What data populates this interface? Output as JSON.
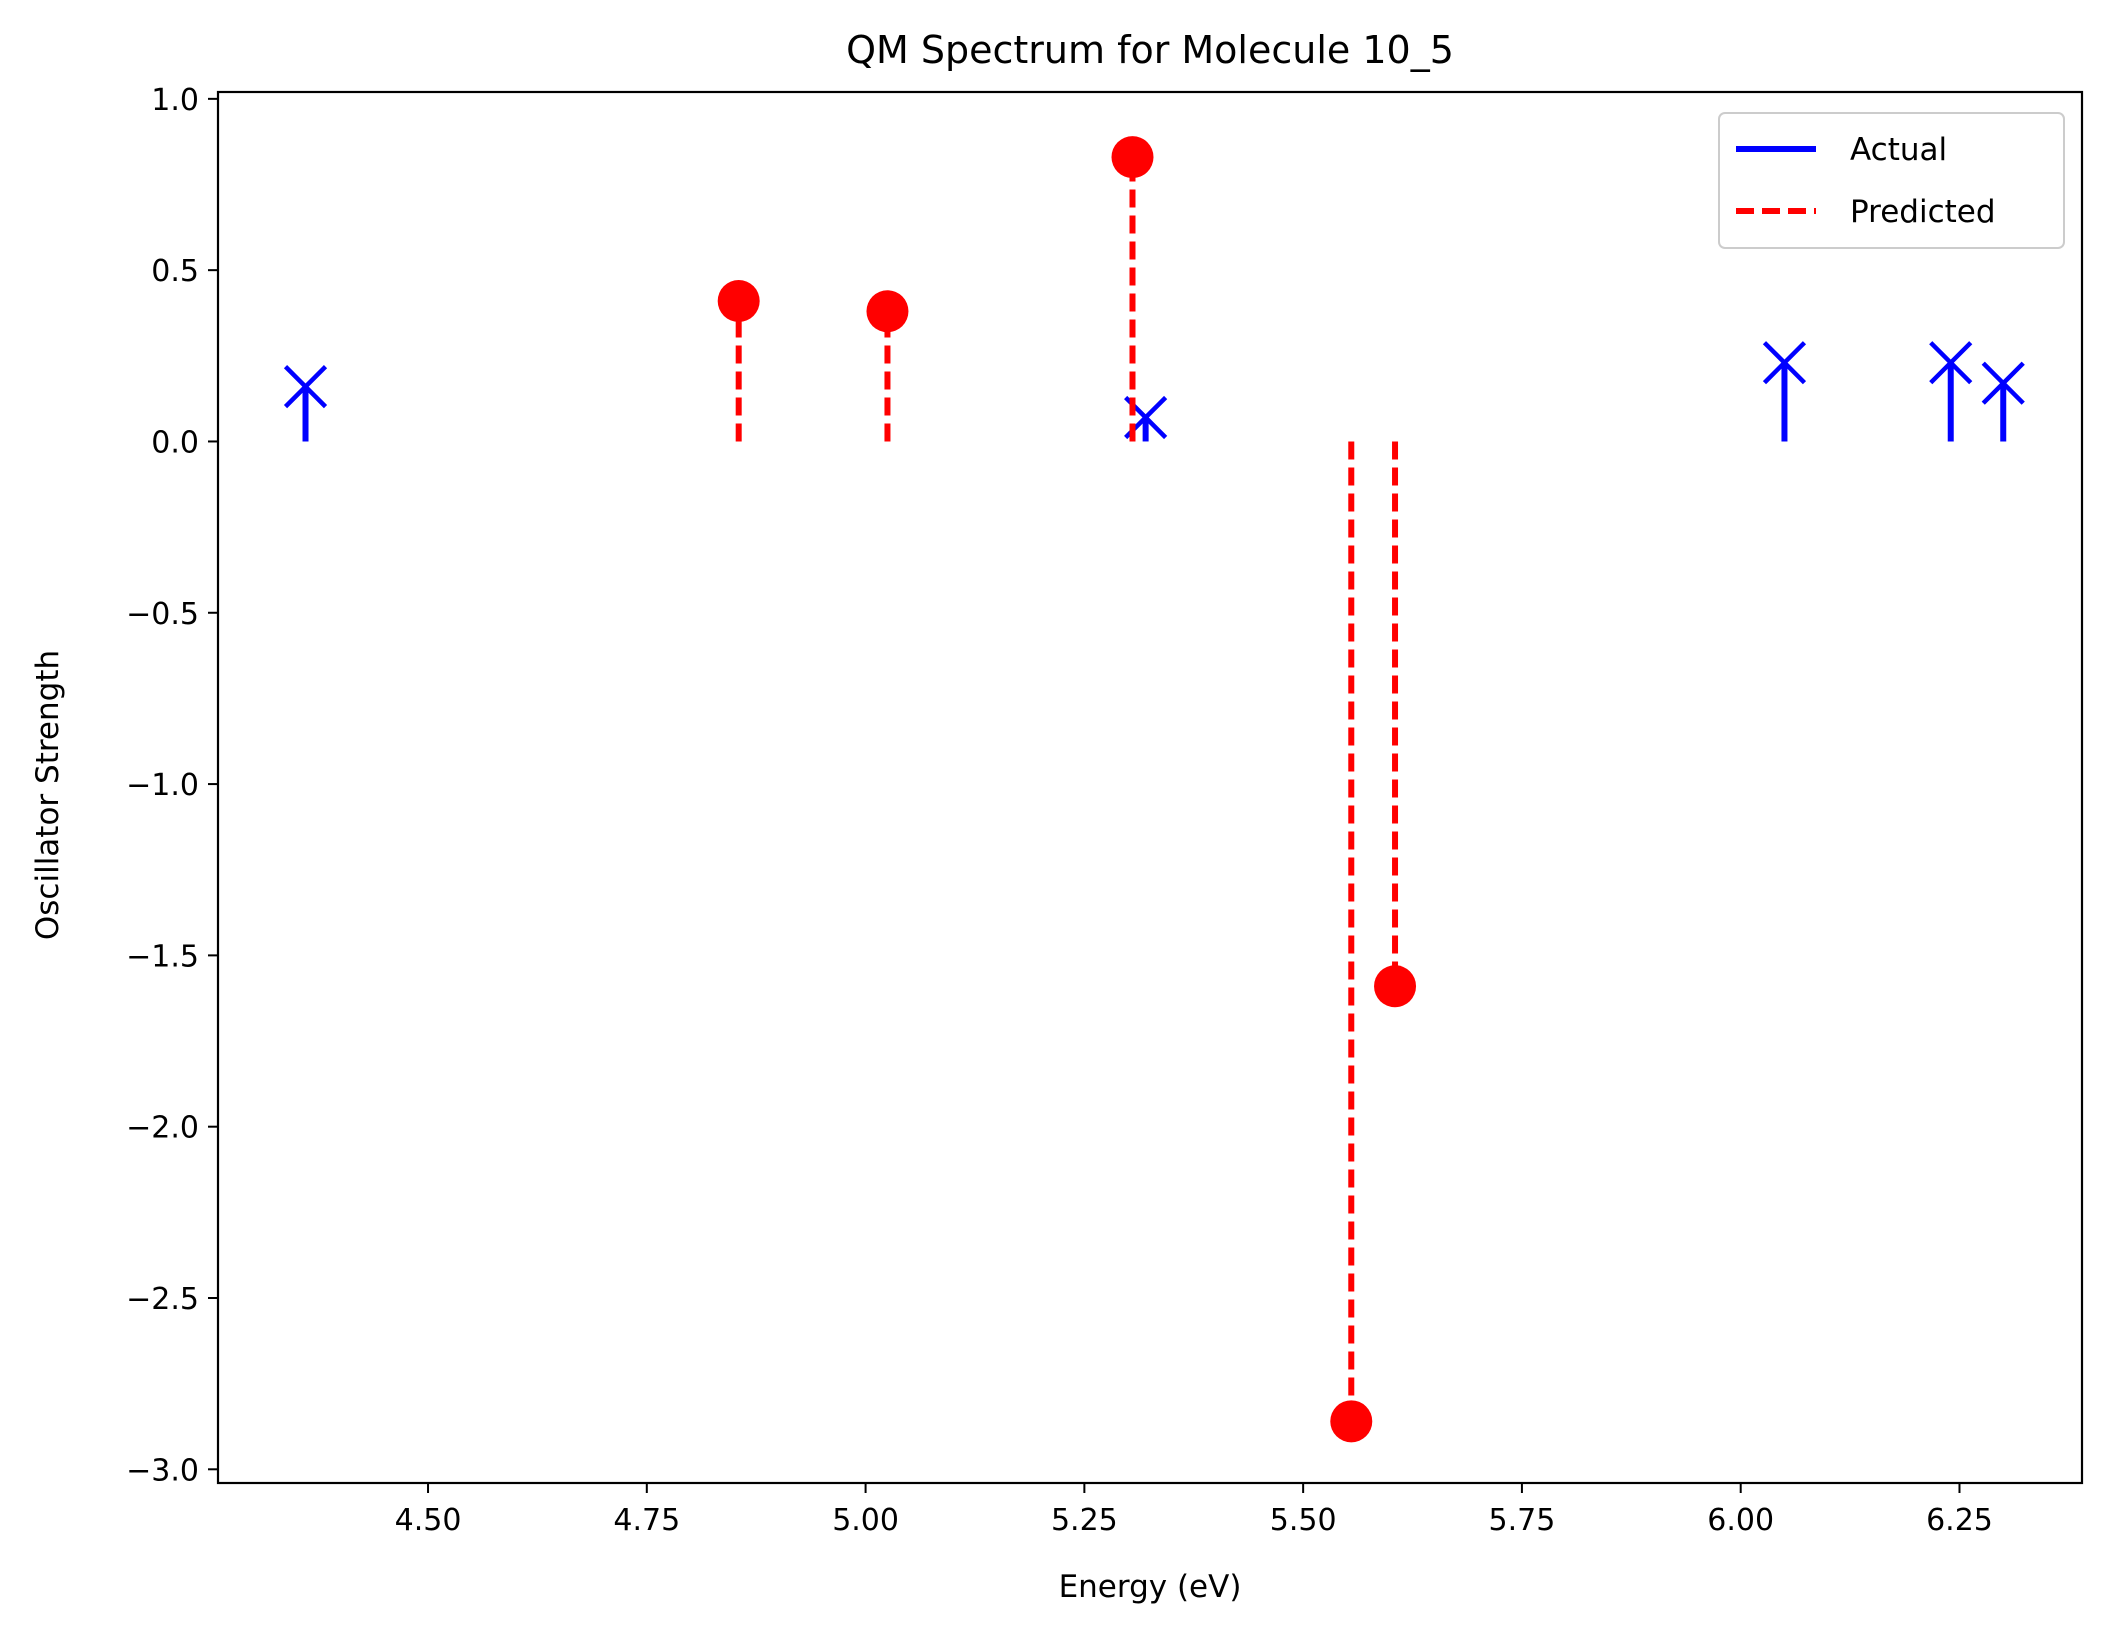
{
  "chart_data": {
    "type": "stem",
    "title": "QM Spectrum for Molecule 10_5",
    "xlabel": "Energy (eV)",
    "ylabel": "Oscillator Strength",
    "xlim": [
      4.26,
      6.39
    ],
    "ylim": [
      -3.04,
      1.02
    ],
    "xticks": [
      4.5,
      4.75,
      5.0,
      5.25,
      5.5,
      5.75,
      6.0,
      6.25
    ],
    "xtick_labels": [
      "4.50",
      "4.75",
      "5.00",
      "5.25",
      "5.50",
      "5.75",
      "6.00",
      "6.25"
    ],
    "yticks": [
      1.0,
      0.5,
      0.0,
      -0.5,
      -1.0,
      -1.5,
      -2.0,
      -2.5,
      -3.0
    ],
    "ytick_labels": [
      "1.0",
      "0.5",
      "0.0",
      "−0.5",
      "−1.0",
      "−1.5",
      "−2.0",
      "−2.5",
      "−3.0"
    ],
    "grid": false,
    "legend_position": "top-right",
    "series": [
      {
        "name": "Actual",
        "color": "#0000ff",
        "linestyle": "solid",
        "marker": "x",
        "points": [
          {
            "x": 4.36,
            "y": 0.16
          },
          {
            "x": 5.32,
            "y": 0.07
          },
          {
            "x": 6.05,
            "y": 0.23
          },
          {
            "x": 6.24,
            "y": 0.23
          },
          {
            "x": 6.3,
            "y": 0.17
          }
        ]
      },
      {
        "name": "Predicted",
        "color": "#ff0000",
        "linestyle": "dashed",
        "marker": "o",
        "points": [
          {
            "x": 4.855,
            "y": 0.41
          },
          {
            "x": 5.025,
            "y": 0.38
          },
          {
            "x": 5.305,
            "y": 0.83
          },
          {
            "x": 5.555,
            "y": -2.86
          },
          {
            "x": 5.605,
            "y": -1.59
          }
        ]
      }
    ]
  }
}
